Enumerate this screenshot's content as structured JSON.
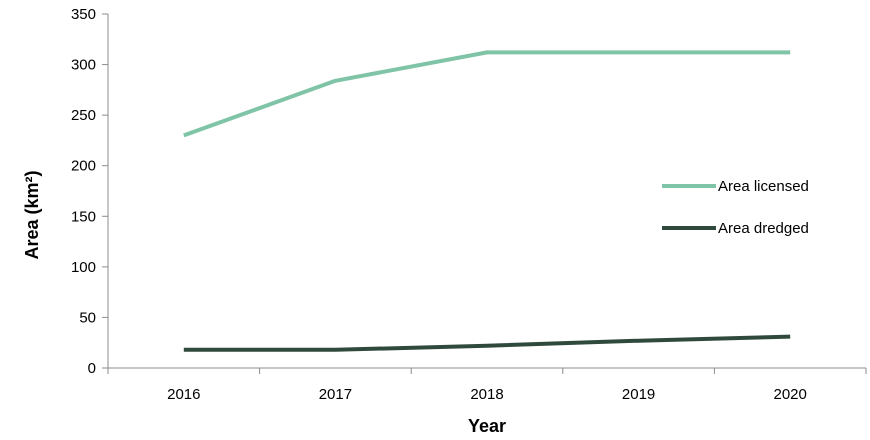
{
  "chart_data": {
    "type": "line",
    "title": "",
    "xlabel": "Year",
    "ylabel": "Area (km²)",
    "categories": [
      "2016",
      "2017",
      "2018",
      "2019",
      "2020"
    ],
    "ylim": [
      0,
      350
    ],
    "yticks": [
      0,
      50,
      100,
      150,
      200,
      250,
      300,
      350
    ],
    "grid": false,
    "legend_position": "right",
    "series": [
      {
        "name": "Area licensed",
        "color": "#7fc4a6",
        "values": [
          230,
          284,
          312,
          312,
          312
        ]
      },
      {
        "name": "Area dredged",
        "color": "#2f4a3c",
        "values": [
          18,
          18,
          22,
          27,
          31
        ]
      }
    ]
  }
}
